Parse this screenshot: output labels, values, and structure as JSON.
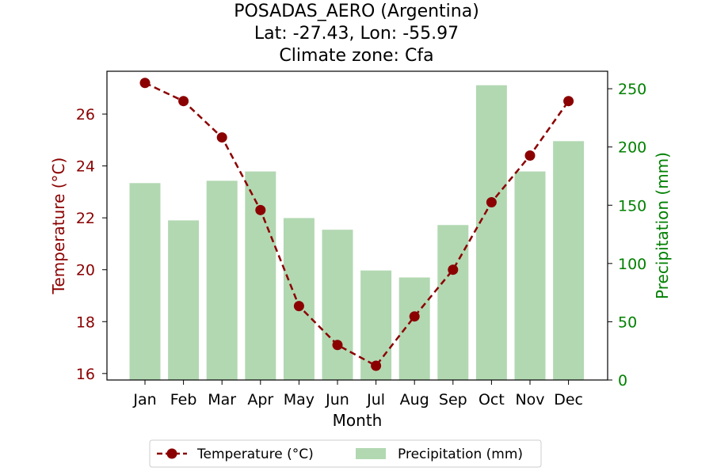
{
  "chart_data": {
    "type": "bar+line",
    "title_lines": [
      "POSADAS_AERO (Argentina)",
      "Lat: -27.43, Lon: -55.97",
      "Climate zone: Cfa"
    ],
    "xlabel": "Month",
    "categories": [
      "Jan",
      "Feb",
      "Mar",
      "Apr",
      "May",
      "Jun",
      "Jul",
      "Aug",
      "Sep",
      "Oct",
      "Nov",
      "Dec"
    ],
    "temperature": {
      "name": "Temperature (°C)",
      "axis_label": "Temperature (°C)",
      "values": [
        27.2,
        26.5,
        25.1,
        22.3,
        18.6,
        17.1,
        16.3,
        18.2,
        20.0,
        22.6,
        24.4,
        26.5
      ],
      "ylim": [
        15.75,
        27.65
      ],
      "ticks": [
        16,
        18,
        20,
        22,
        24,
        26
      ],
      "color": "#8b0000",
      "line_style": "dashed",
      "marker": "circle"
    },
    "precipitation": {
      "name": "Precipitation (mm)",
      "axis_label": "Precipitation (mm)",
      "values": [
        169,
        137,
        171,
        179,
        139,
        129,
        94,
        88,
        133,
        253,
        179,
        205
      ],
      "ylim": [
        0,
        265
      ],
      "ticks": [
        0,
        50,
        100,
        150,
        200,
        250
      ],
      "bar_color": "#b2d8b2",
      "axis_color": "#008000"
    },
    "legend": {
      "position": "bottom-center",
      "items": [
        "Temperature (°C)",
        "Precipitation (mm)"
      ]
    }
  }
}
